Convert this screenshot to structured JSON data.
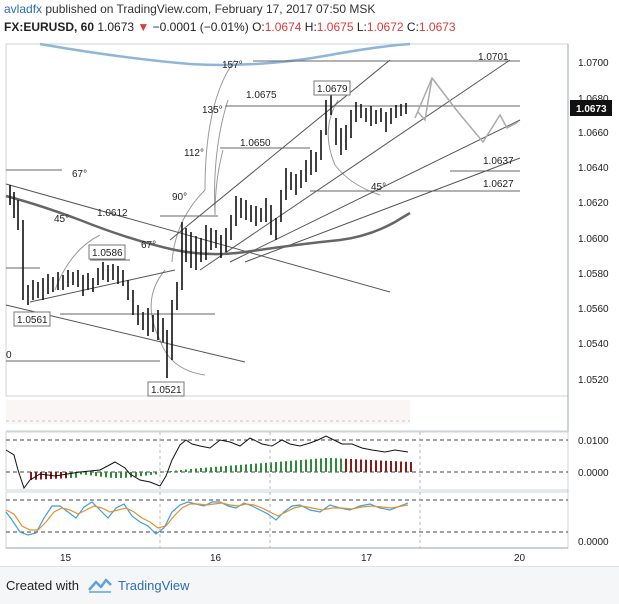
{
  "header": {
    "user": "avladfx",
    "published_text": "published on TradingView.com, February 17, 2017 07:50 MSK",
    "symbol": "FX:EURUSD, 60",
    "last": "1.0673",
    "change": "−0.0001 (−0.01%)",
    "o_label": "O:",
    "o_value": "1.0674",
    "h_label": "H:",
    "h_value": "1.0675",
    "l_label": "L:",
    "l_value": "1.0672",
    "c_label": "C:",
    "c_value": "1.0673"
  },
  "price_axis": {
    "ticks": [
      "1.0700",
      "1.0680",
      "1.0660",
      "1.0640",
      "1.0620",
      "1.0600",
      "1.0580",
      "1.0560",
      "1.0540",
      "1.0520"
    ],
    "current": "1.0673"
  },
  "macd_axis": {
    "ticks": [
      "0.0100",
      "0.0000"
    ]
  },
  "stoch_axis": {
    "ticks": [
      "0.0000"
    ]
  },
  "time_axis": {
    "ticks": [
      "15",
      "16",
      "17",
      "20"
    ]
  },
  "annotations": {
    "gann_angles": [
      "157°",
      "135°",
      "112°",
      "90°",
      "67°",
      "45°",
      "67°",
      "45°",
      "0"
    ],
    "price_labels": [
      "1.0701",
      "1.0679",
      "1.0675",
      "1.0650",
      "1.0637",
      "1.0627",
      "1.0612",
      "1.0586",
      "1.0561",
      "1.0521"
    ]
  },
  "colors": {
    "up": "#2e8b3a",
    "down": "#8b1a1a",
    "accent": "#2a6db5",
    "ma": "#555555",
    "blue_curve": "#8fb6d8"
  },
  "footer": {
    "created_with": "Created with",
    "brand": "TradingView"
  }
}
